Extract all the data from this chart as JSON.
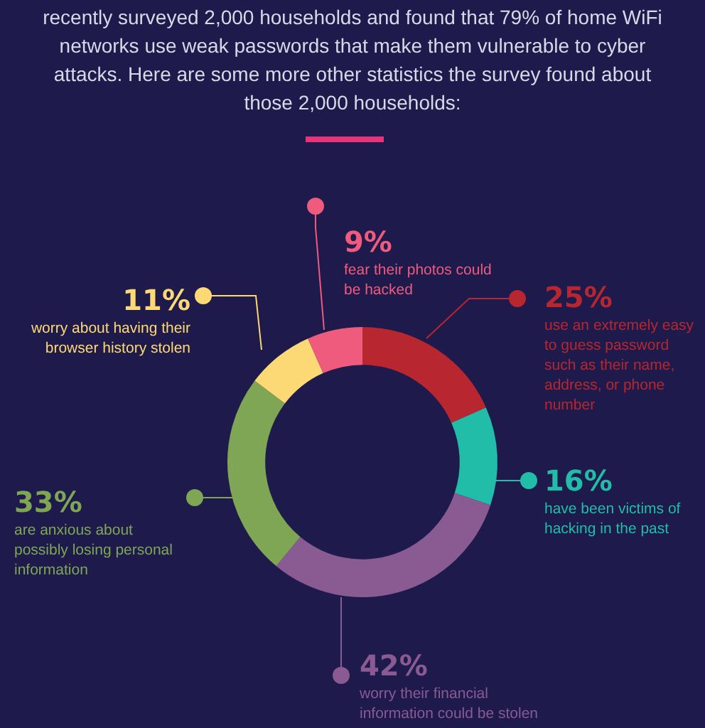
{
  "chart_data": {
    "type": "donut",
    "title": "recently surveyed 2,000 households and found that 79% of home WiFi networks use weak passwords that make them vulnerable to cyber attacks. Here are some more other statistics the survey found about those 2,000 households:",
    "categories": [
      "use an extremely easy to guess password such as their name, address, or phone number",
      "have been victims of hacking in the past",
      "worry their financial information could be stolen",
      "are anxious about possibly losing personal information",
      "worry about having their browser history stolen",
      "fear their photos could be hacked"
    ],
    "values": [
      25,
      16,
      42,
      33,
      11,
      9
    ],
    "value_labels": [
      "25%",
      "16%",
      "42%",
      "33%",
      "11%",
      "9%"
    ],
    "colors": [
      "#b8262f",
      "#22bda8",
      "#8a5a93",
      "#7ea654",
      "#fcd975",
      "#ee5b7d"
    ]
  }
}
